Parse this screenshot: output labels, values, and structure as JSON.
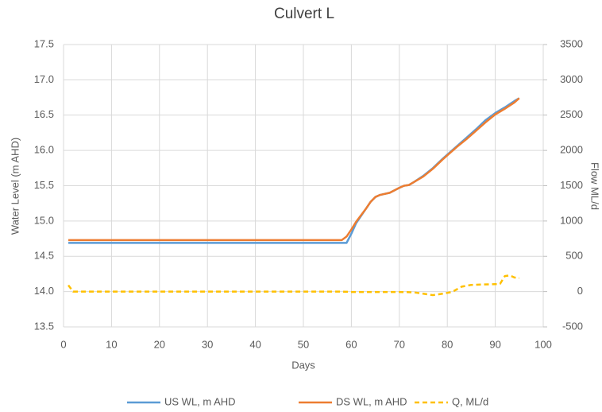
{
  "chart_data": {
    "type": "line",
    "title": "Culvert L",
    "xlabel": "Days",
    "ylabel": "Water Level (m AHD)",
    "y2label": "Flow ML/d",
    "xlim": [
      0,
      100
    ],
    "xticks": [
      0,
      10,
      20,
      30,
      40,
      50,
      60,
      70,
      80,
      90,
      100
    ],
    "ylim": [
      13.5,
      17.5
    ],
    "yticks": [
      13.5,
      {
        "value": 14,
        "label": "14.0"
      },
      14.5,
      {
        "value": 15,
        "label": "15.0"
      },
      15.5,
      {
        "value": 16,
        "label": "16.0"
      },
      16.5,
      {
        "value": 17,
        "label": "17.0"
      },
      17.5
    ],
    "y2lim": [
      -500,
      3500
    ],
    "y2ticks": [
      -500,
      0,
      500,
      1000,
      1500,
      2000,
      2500,
      3000,
      3500
    ],
    "grid": true,
    "legend": "bottom",
    "series": [
      {
        "name": "US WL, m AHD",
        "color": "#5b9bd5",
        "dash": false,
        "x": [
          1,
          58,
          59,
          60,
          61,
          62,
          63,
          64,
          65,
          66,
          68,
          70,
          71,
          72,
          73,
          75,
          77,
          79,
          80,
          82,
          84,
          86,
          88,
          90,
          92,
          94,
          95
        ],
        "values": [
          14.69,
          14.69,
          14.69,
          14.82,
          14.97,
          15.07,
          15.17,
          15.27,
          15.34,
          15.37,
          15.4,
          15.47,
          15.5,
          15.51,
          15.55,
          15.64,
          15.75,
          15.88,
          15.94,
          16.06,
          16.18,
          16.3,
          16.43,
          16.53,
          16.61,
          16.7,
          16.74
        ]
      },
      {
        "name": "DS WL, m AHD",
        "color": "#ed7d31",
        "dash": false,
        "x": [
          1,
          58,
          59,
          60,
          61,
          62,
          63,
          64,
          65,
          66,
          68,
          70,
          71,
          72,
          73,
          75,
          77,
          79,
          80,
          82,
          84,
          86,
          88,
          90,
          92,
          94,
          95
        ],
        "values": [
          14.73,
          14.73,
          14.78,
          14.88,
          14.99,
          15.08,
          15.17,
          15.27,
          15.34,
          15.37,
          15.4,
          15.47,
          15.5,
          15.51,
          15.55,
          15.63,
          15.74,
          15.87,
          15.93,
          16.05,
          16.16,
          16.28,
          16.4,
          16.51,
          16.59,
          16.68,
          16.74
        ]
      },
      {
        "name": "Q, ML/d",
        "color": "#ffc000",
        "dash": true,
        "axis": "y2",
        "x": [
          1,
          2,
          58,
          60,
          65,
          70,
          73,
          75,
          77,
          79,
          81,
          83,
          85,
          87,
          90,
          91,
          92,
          93,
          94,
          95
        ],
        "values": [
          90,
          0,
          0,
          -5,
          -5,
          -5,
          -10,
          -30,
          -50,
          -30,
          -5,
          70,
          95,
          100,
          105,
          110,
          220,
          230,
          200,
          190
        ]
      }
    ]
  }
}
